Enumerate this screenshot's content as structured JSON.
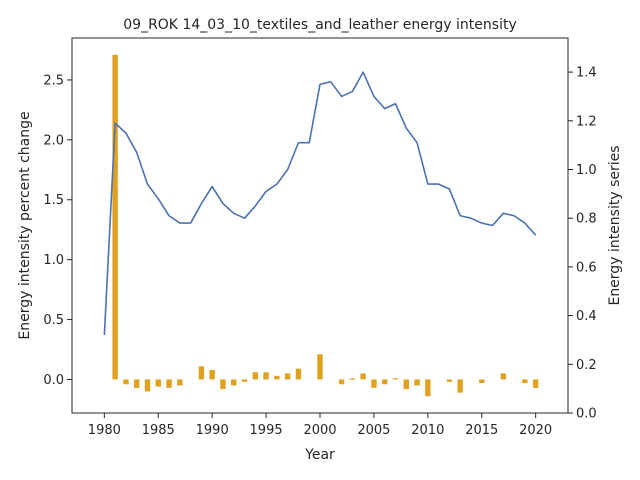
{
  "chart_data": {
    "type": "bar+line",
    "title": "09_ROK 14_03_10_textiles_and_leather energy intensity",
    "xlabel": "Year",
    "ylabel_left": "Energy intensity percent change",
    "ylabel_right": "Energy intensity series",
    "xlim": [
      1977,
      2023
    ],
    "ylim_left": [
      -0.28,
      2.85
    ],
    "ylim_right": [
      0.0,
      1.54
    ],
    "x_ticks": [
      1980,
      1985,
      1990,
      1995,
      2000,
      2005,
      2010,
      2015,
      2020
    ],
    "y_left_ticks": [
      0.0,
      0.5,
      1.0,
      1.5,
      2.0,
      2.5
    ],
    "y_left_tick_labels": [
      "0.0",
      "0.5",
      "1.0",
      "1.5",
      "2.0",
      "2.5"
    ],
    "y_right_ticks": [
      0.0,
      0.2,
      0.4,
      0.6,
      0.8,
      1.0,
      1.2,
      1.4
    ],
    "y_right_tick_labels": [
      "0.0",
      "0.2",
      "0.4",
      "0.6",
      "0.8",
      "1.0",
      "1.2",
      "1.4"
    ],
    "bar_series": {
      "axis": "left",
      "color": "#e0a020",
      "x": [
        1981,
        1982,
        1983,
        1984,
        1985,
        1986,
        1987,
        1989,
        1990,
        1991,
        1992,
        1993,
        1994,
        1995,
        1996,
        1997,
        1998,
        2000,
        2002,
        2003,
        2004,
        2005,
        2006,
        2007,
        2008,
        2009,
        2010,
        2012,
        2013,
        2015,
        2017,
        2019,
        2020
      ],
      "values": [
        2.71,
        -0.04,
        -0.07,
        -0.1,
        -0.06,
        -0.07,
        -0.05,
        0.11,
        0.08,
        -0.08,
        -0.05,
        -0.02,
        0.06,
        0.06,
        0.03,
        0.05,
        0.09,
        0.21,
        -0.04,
        0.01,
        0.05,
        -0.07,
        -0.04,
        0.01,
        -0.08,
        -0.05,
        -0.14,
        -0.02,
        -0.11,
        -0.03,
        0.05,
        -0.03,
        -0.07
      ]
    },
    "line_series": {
      "axis": "right",
      "color": "#4c72b0",
      "x": [
        1980,
        1981,
        1982,
        1983,
        1984,
        1985,
        1986,
        1987,
        1988,
        1989,
        1990,
        1991,
        1992,
        1993,
        1994,
        1995,
        1996,
        1997,
        1998,
        1999,
        2000,
        2001,
        2002,
        2003,
        2004,
        2005,
        2006,
        2007,
        2008,
        2009,
        2010,
        2011,
        2012,
        2013,
        2014,
        2015,
        2016,
        2017,
        2018,
        2019,
        2020
      ],
      "values": [
        0.32,
        1.19,
        1.15,
        1.07,
        0.94,
        0.88,
        0.81,
        0.78,
        0.78,
        0.86,
        0.93,
        0.86,
        0.82,
        0.8,
        0.85,
        0.91,
        0.94,
        1.0,
        1.11,
        1.11,
        1.35,
        1.36,
        1.3,
        1.32,
        1.4,
        1.3,
        1.25,
        1.27,
        1.17,
        1.11,
        0.94,
        0.94,
        0.92,
        0.81,
        0.8,
        0.78,
        0.77,
        0.82,
        0.81,
        0.78,
        0.73
      ]
    },
    "grid": false,
    "legend": "none"
  }
}
